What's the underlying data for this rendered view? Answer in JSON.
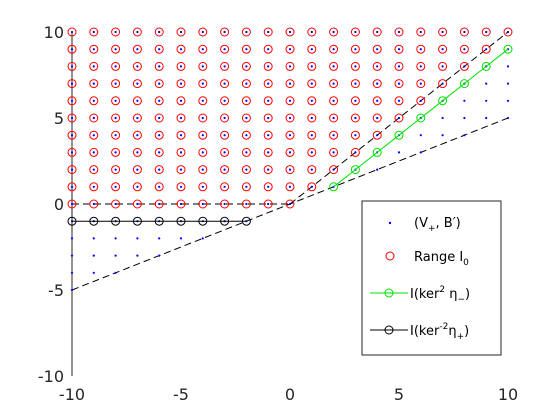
{
  "chart_data": {
    "type": "scatter",
    "title": "",
    "xlabel": "",
    "ylabel": "",
    "xlim": [
      -10,
      10
    ],
    "ylim": [
      -10,
      10
    ],
    "x_ticks": [
      -10,
      -5,
      0,
      5,
      10
    ],
    "y_ticks": [
      -10,
      -5,
      0,
      5,
      10
    ],
    "x_tick_labels": [
      "-10",
      "-5",
      "0",
      "5",
      "10"
    ],
    "y_tick_labels": [
      "-10",
      "-5",
      "0",
      "5",
      "10"
    ],
    "grid": false,
    "box": false,
    "legend_position": "lower-right",
    "legend": [
      {
        "id": "vb",
        "text": "(V",
        "sub": "+",
        "after": ", B′)",
        "marker": "dot",
        "color": "#0000ff"
      },
      {
        "id": "range",
        "text": "Range I",
        "sub": "0",
        "after": "",
        "marker": "circle",
        "color": "#ff0000"
      },
      {
        "id": "kerm",
        "text": "I(ker",
        "sup": "2",
        "mid": " η",
        "sub": "−",
        "after": ")",
        "marker": "line-circle",
        "color": "#00e000"
      },
      {
        "id": "kerp",
        "text": "I(ker",
        "sup": "-2",
        "mid": "η",
        "sub": "+",
        "after": ")",
        "marker": "line-circle",
        "color": "#000000"
      }
    ],
    "dashed_lines": [
      {
        "name": "y = x",
        "points": [
          [
            0,
            0
          ],
          [
            10,
            10
          ]
        ],
        "color": "#000000"
      },
      {
        "name": "y = x/2",
        "points": [
          [
            -10,
            -5
          ],
          [
            10,
            5
          ]
        ],
        "color": "#000000"
      },
      {
        "name": "y = 0",
        "points": [
          [
            -10,
            0
          ],
          [
            0,
            0
          ]
        ],
        "color": "#000000"
      }
    ],
    "solid_lines": [
      {
        "name": "left edge",
        "points": [
          [
            -10,
            -10
          ],
          [
            -10,
            10
          ]
        ],
        "color": "#262626"
      }
    ],
    "series": [
      {
        "name": "(V+, B')",
        "marker": "dot",
        "color": "#0000ff",
        "rule": "integer points with x/2 <= y <= 10 and -10 <= x <= 10",
        "x_range": [
          -10,
          10
        ],
        "y_max": 10
      },
      {
        "name": "Range I0",
        "marker": "circle",
        "color": "#ff0000",
        "rule": "integer points with y >= 0, y >= x, -10 <= x <= 0 or y >= x for x > 0",
        "x_range": [
          -10,
          10
        ],
        "y_max": 10
      },
      {
        "name": "I(ker^2 eta-)",
        "marker": "line-circle",
        "color": "#00e000",
        "x": [
          2,
          3,
          4,
          5,
          6,
          7,
          8,
          9,
          10
        ],
        "y": [
          1,
          2,
          3,
          4,
          5,
          6,
          7,
          8,
          9
        ]
      },
      {
        "name": "I(ker^-2 eta+)",
        "marker": "line-circle",
        "color": "#000000",
        "x": [
          -10,
          -9,
          -8,
          -7,
          -6,
          -5,
          -4,
          -3,
          -2
        ],
        "y": [
          -1,
          -1,
          -1,
          -1,
          -1,
          -1,
          -1,
          -1,
          -1
        ]
      }
    ]
  }
}
